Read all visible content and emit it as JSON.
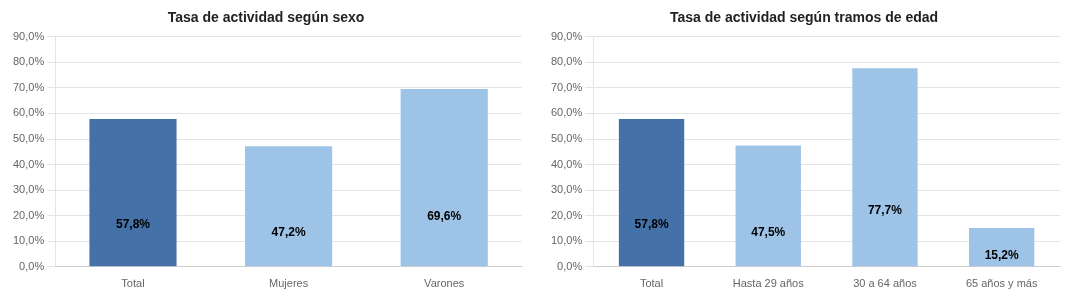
{
  "chart_data": [
    {
      "type": "bar",
      "title": "Tasa de actividad según sexo",
      "categories": [
        "Total",
        "Mujeres",
        "Varones"
      ],
      "values": [
        57.8,
        47.2,
        69.6
      ],
      "value_labels": [
        "57,8%",
        "47,2%",
        "69,6%"
      ],
      "colors": [
        "#4472a8",
        "#9DC3E6",
        "#9DC3E6"
      ],
      "ylim": [
        0,
        90
      ],
      "yticks": [
        {
          "value": 0,
          "label": "0,0%"
        },
        {
          "value": 10,
          "label": "10,0%"
        },
        {
          "value": 20,
          "label": "20,0%"
        },
        {
          "value": 30,
          "label": "30,0%"
        },
        {
          "value": 40,
          "label": "40,0%"
        },
        {
          "value": 50,
          "label": "50,0%"
        },
        {
          "value": 60,
          "label": "60,0%"
        },
        {
          "value": 70,
          "label": "70,0%"
        },
        {
          "value": 80,
          "label": "80,0%"
        },
        {
          "value": 90,
          "label": "90,0%"
        }
      ],
      "grid": true,
      "data_labels": true
    },
    {
      "type": "bar",
      "title": "Tasa de actividad según tramos de edad",
      "categories": [
        "Total",
        "Hasta 29 años",
        "30 a 64 años",
        "65 años y más"
      ],
      "values": [
        57.8,
        47.5,
        77.7,
        15.2
      ],
      "value_labels": [
        "57,8%",
        "47,5%",
        "77,7%",
        "15,2%"
      ],
      "colors": [
        "#4472a8",
        "#9DC3E6",
        "#9DC3E6",
        "#9DC3E6"
      ],
      "ylim": [
        0,
        90
      ],
      "yticks": [
        {
          "value": 0,
          "label": "0,0%"
        },
        {
          "value": 10,
          "label": "10,0%"
        },
        {
          "value": 20,
          "label": "20,0%"
        },
        {
          "value": 30,
          "label": "30,0%"
        },
        {
          "value": 40,
          "label": "40,0%"
        },
        {
          "value": 50,
          "label": "50,0%"
        },
        {
          "value": 60,
          "label": "60,0%"
        },
        {
          "value": 70,
          "label": "70,0%"
        },
        {
          "value": 80,
          "label": "80,0%"
        },
        {
          "value": 90,
          "label": "90,0%"
        }
      ],
      "grid": true,
      "data_labels": true
    }
  ]
}
